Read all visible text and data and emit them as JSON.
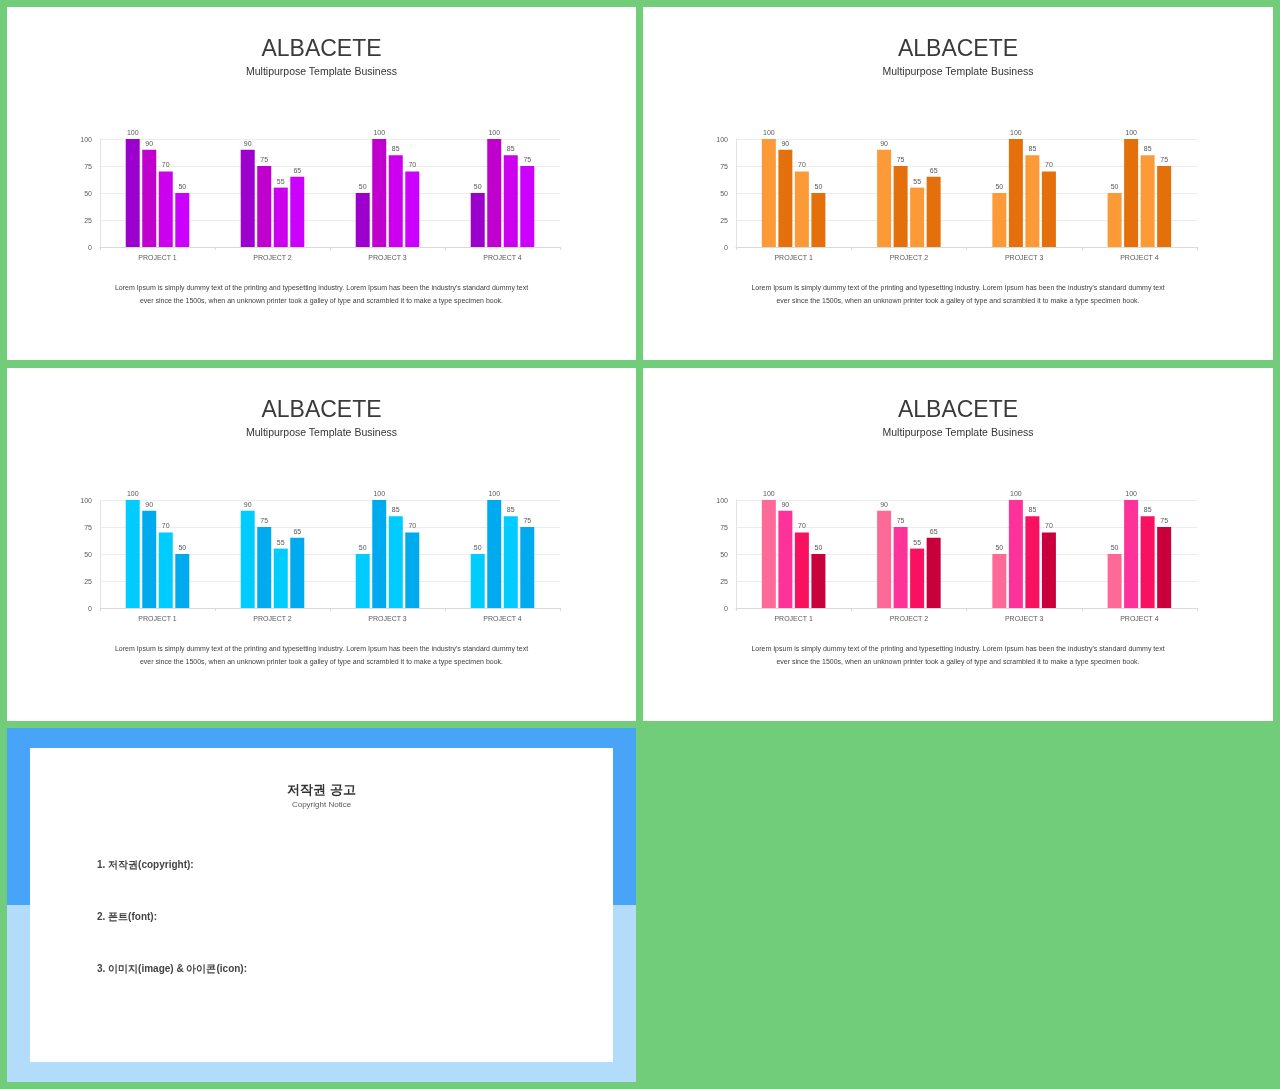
{
  "chart_data": [
    {
      "type": "bar",
      "title": "ALBACETE",
      "subtitle": "Multipurpose Template Business",
      "categories": [
        "PROJECT 1",
        "PROJECT 2",
        "PROJECT 3",
        "PROJECT 4"
      ],
      "series": [
        {
          "color": "#9b00cc",
          "values": [
            100,
            90,
            50,
            50
          ]
        },
        {
          "color": "#c000cc",
          "values": [
            90,
            75,
            100,
            100
          ]
        },
        {
          "color": "#cc00ee",
          "values": [
            70,
            55,
            85,
            85
          ]
        },
        {
          "color": "#cc00ff",
          "values": [
            50,
            65,
            70,
            75
          ]
        }
      ],
      "ylim": [
        0,
        100
      ],
      "yticks": [
        0,
        25,
        50,
        75,
        100
      ],
      "grid": "y",
      "data_labels": true,
      "annotations": [
        "Lorem Ipsum is simply dummy text of the printing and typesetting industry. Lorem Ipsum has been the industry's standard dummy text",
        "ever since the 1500s, when an unknown printer took a galley of type and scrambled it to make a type specimen book."
      ]
    },
    {
      "type": "bar",
      "title": "ALBACETE",
      "subtitle": "Multipurpose Template Business",
      "categories": [
        "PROJECT 1",
        "PROJECT 2",
        "PROJECT 3",
        "PROJECT 4"
      ],
      "series": [
        {
          "color": "#fd9a38",
          "values": [
            100,
            90,
            50,
            50
          ]
        },
        {
          "color": "#e3700a",
          "values": [
            90,
            75,
            100,
            100
          ]
        },
        {
          "color": "#fd9a38",
          "values": [
            70,
            55,
            85,
            85
          ]
        },
        {
          "color": "#e3700a",
          "values": [
            50,
            65,
            70,
            75
          ]
        }
      ],
      "ylim": [
        0,
        100
      ],
      "yticks": [
        0,
        25,
        50,
        75,
        100
      ],
      "grid": "y",
      "data_labels": true,
      "annotations": [
        "Lorem Ipsum is simply dummy text of the printing and typesetting industry. Lorem Ipsum has been the industry's standard dummy text",
        "ever since the 1500s, when an unknown printer took a galley of type and scrambled it to make a type specimen book."
      ]
    },
    {
      "type": "bar",
      "title": "ALBACETE",
      "subtitle": "Multipurpose Template Business",
      "categories": [
        "PROJECT 1",
        "PROJECT 2",
        "PROJECT 3",
        "PROJECT 4"
      ],
      "series": [
        {
          "color": "#00ccff",
          "values": [
            100,
            90,
            50,
            50
          ]
        },
        {
          "color": "#00aaee",
          "values": [
            90,
            75,
            100,
            100
          ]
        },
        {
          "color": "#00ccff",
          "values": [
            70,
            55,
            85,
            85
          ]
        },
        {
          "color": "#00aaee",
          "values": [
            50,
            65,
            70,
            75
          ]
        }
      ],
      "ylim": [
        0,
        100
      ],
      "yticks": [
        0,
        25,
        50,
        75,
        100
      ],
      "grid": "y",
      "data_labels": true,
      "annotations": [
        "Lorem Ipsum is simply dummy text of the printing and typesetting industry. Lorem Ipsum has been the industry's standard dummy text",
        "ever since the 1500s, when an unknown printer took a galley of type and scrambled it to make a type specimen book."
      ]
    },
    {
      "type": "bar",
      "title": "ALBACETE",
      "subtitle": "Multipurpose Template Business",
      "categories": [
        "PROJECT 1",
        "PROJECT 2",
        "PROJECT 3",
        "PROJECT 4"
      ],
      "series": [
        {
          "color": "#fe6a98",
          "values": [
            100,
            90,
            50,
            50
          ]
        },
        {
          "color": "#fe3399",
          "values": [
            90,
            75,
            100,
            100
          ]
        },
        {
          "color": "#fa1060",
          "values": [
            70,
            55,
            85,
            85
          ]
        },
        {
          "color": "#c8003c",
          "values": [
            50,
            65,
            70,
            75
          ]
        }
      ],
      "ylim": [
        0,
        100
      ],
      "yticks": [
        0,
        25,
        50,
        75,
        100
      ],
      "grid": "y",
      "data_labels": true,
      "annotations": [
        "Lorem Ipsum is simply dummy text of the printing and typesetting industry. Lorem Ipsum has been the industry's standard dummy text",
        "ever since the 1500s, when an unknown printer took a galley of type and scrambled it to make a type specimen book."
      ]
    },
    {
      "type": "other",
      "title": "저작권 공고",
      "subtitle": "Copyright Notice",
      "annotations": [
        "1. 저작권(copyright):",
        "2. 폰트(font):",
        "3. 이미지(image) & 아이콘(icon):"
      ]
    }
  ]
}
